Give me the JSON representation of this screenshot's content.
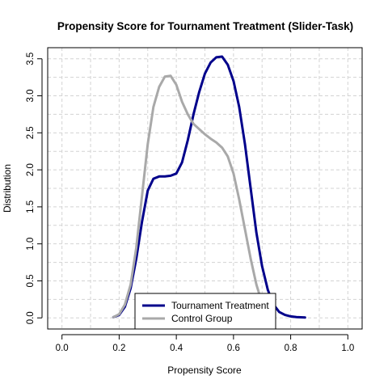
{
  "chart_data": {
    "type": "line",
    "title": "Propensity Score for Tournament Treatment (Slider-Task)",
    "xlabel": "Propensity Score",
    "ylabel": "Distribution",
    "xlim": [
      -0.05,
      1.05
    ],
    "ylim": [
      -0.15,
      3.65
    ],
    "x_ticks": [
      0.0,
      0.2,
      0.4,
      0.6,
      0.8,
      1.0
    ],
    "x_tick_labels": [
      "0.0",
      "0.2",
      "0.4",
      "0.6",
      "0.8",
      "1.0"
    ],
    "y_ticks": [
      0.0,
      0.5,
      1.0,
      1.5,
      2.0,
      2.5,
      3.0,
      3.5
    ],
    "y_tick_labels": [
      "0.0",
      "0.5",
      "1.0",
      "1.5",
      "2.0",
      "2.5",
      "3.0",
      "3.5"
    ],
    "grid": true,
    "grid_x": [
      0.0,
      0.1,
      0.2,
      0.3,
      0.4,
      0.5,
      0.6,
      0.7,
      0.8,
      0.9,
      1.0
    ],
    "grid_y": [
      0.0,
      0.25,
      0.5,
      0.75,
      1.0,
      1.25,
      1.5,
      1.75,
      2.0,
      2.25,
      2.5,
      2.75,
      3.0,
      3.25,
      3.5
    ],
    "legend_placement": "bottom-center",
    "series": [
      {
        "name": "Tournament Treatment",
        "color": "#00008B",
        "x": [
          0.18,
          0.2,
          0.22,
          0.24,
          0.26,
          0.28,
          0.3,
          0.32,
          0.34,
          0.36,
          0.38,
          0.4,
          0.42,
          0.44,
          0.46,
          0.48,
          0.5,
          0.52,
          0.54,
          0.56,
          0.58,
          0.6,
          0.62,
          0.64,
          0.66,
          0.68,
          0.7,
          0.72,
          0.74,
          0.76,
          0.78,
          0.8,
          0.82,
          0.85
        ],
        "y": [
          0.01,
          0.04,
          0.15,
          0.4,
          0.8,
          1.3,
          1.72,
          1.88,
          1.91,
          1.91,
          1.92,
          1.95,
          2.1,
          2.4,
          2.75,
          3.05,
          3.3,
          3.45,
          3.52,
          3.53,
          3.42,
          3.2,
          2.85,
          2.35,
          1.75,
          1.15,
          0.7,
          0.38,
          0.18,
          0.08,
          0.04,
          0.02,
          0.01,
          0.005
        ]
      },
      {
        "name": "Control Group",
        "color": "#A9A9A9",
        "x": [
          0.18,
          0.2,
          0.22,
          0.24,
          0.26,
          0.28,
          0.3,
          0.32,
          0.34,
          0.36,
          0.38,
          0.4,
          0.42,
          0.44,
          0.46,
          0.48,
          0.5,
          0.52,
          0.54,
          0.56,
          0.58,
          0.6,
          0.62,
          0.64,
          0.66,
          0.68,
          0.7,
          0.72,
          0.74
        ],
        "y": [
          0.01,
          0.05,
          0.18,
          0.45,
          0.95,
          1.65,
          2.35,
          2.85,
          3.12,
          3.26,
          3.27,
          3.15,
          2.92,
          2.75,
          2.62,
          2.55,
          2.48,
          2.42,
          2.37,
          2.3,
          2.18,
          1.95,
          1.6,
          1.2,
          0.8,
          0.45,
          0.2,
          0.07,
          0.02
        ]
      }
    ]
  }
}
